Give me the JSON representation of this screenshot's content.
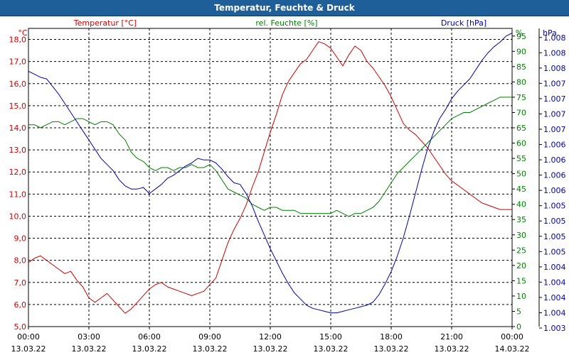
{
  "window": {
    "title": "Temperatur, Feuchte & Druck"
  },
  "chart_data": {
    "type": "line",
    "title": "Temperatur, Feuchte & Druck",
    "grid": true,
    "colors": {
      "temperature": "#cc0000",
      "humidity": "#008000",
      "pressure": "#0000aa",
      "title_bg": "#1f5f99"
    },
    "x_ticks": [
      {
        "time": "00:00",
        "date": "13.03.22"
      },
      {
        "time": "03:00",
        "date": "13.03.22"
      },
      {
        "time": "06:00",
        "date": "13.03.22"
      },
      {
        "time": "09:00",
        "date": "13.03.22"
      },
      {
        "time": "12:00",
        "date": "13.03.22"
      },
      {
        "time": "15:00",
        "date": "13.03.22"
      },
      {
        "time": "18:00",
        "date": "13.03.22"
      },
      {
        "time": "21:00",
        "date": "13.03.22"
      },
      {
        "time": "00:00",
        "date": "14.03.22"
      }
    ],
    "x_range_hours": [
      0,
      24
    ],
    "axes": {
      "temperature": {
        "unit": "°C",
        "label": "Temperatur [°C]",
        "range": [
          5,
          18.5
        ],
        "ticks": [
          "18,0",
          "17,0",
          "16,0",
          "15,0",
          "14,0",
          "13,0",
          "12,0",
          "11,0",
          "10,0",
          "9,0",
          "8,0",
          "7,0",
          "6,0",
          "5,0"
        ]
      },
      "humidity": {
        "unit": "%",
        "label": "rel. Feuchte [%]",
        "range": [
          0,
          97.5
        ],
        "ticks": [
          "95",
          "90",
          "85",
          "80",
          "75",
          "70",
          "65",
          "60",
          "55",
          "50",
          "45",
          "40",
          "35",
          "30",
          "25",
          "20",
          "15",
          "10",
          "5",
          "0"
        ]
      },
      "pressure": {
        "unit": "hPa",
        "label": "Druck [hPa]",
        "ticks": [
          "1.008",
          "1.008",
          "1.008",
          "1.007",
          "1.007",
          "1.007",
          "1.007",
          "1.006",
          "1.006",
          "1.006",
          "1.006",
          "1.005",
          "1.005",
          "1.005",
          "1.005",
          "1.004",
          "1.004",
          "1.004",
          "1.004",
          "1.003"
        ]
      }
    },
    "series": [
      {
        "name": "Temperatur [°C]",
        "axis": "temperature",
        "x": [
          0,
          0.3,
          0.6,
          0.9,
          1.2,
          1.5,
          1.8,
          2.1,
          2.4,
          2.7,
          3.0,
          3.3,
          3.6,
          3.9,
          4.2,
          4.5,
          4.8,
          5.1,
          5.4,
          5.7,
          6.0,
          6.3,
          6.6,
          6.9,
          7.2,
          7.5,
          7.8,
          8.1,
          8.4,
          8.7,
          9.0,
          9.3,
          9.6,
          9.9,
          10.2,
          10.5,
          10.8,
          11.1,
          11.4,
          11.7,
          12.0,
          12.3,
          12.6,
          12.9,
          13.2,
          13.5,
          13.8,
          14.1,
          14.4,
          14.7,
          15.0,
          15.3,
          15.6,
          15.9,
          16.2,
          16.5,
          16.8,
          17.1,
          17.4,
          17.7,
          18.0,
          18.3,
          18.6,
          18.9,
          19.2,
          19.5,
          19.8,
          20.1,
          20.4,
          20.7,
          21.0,
          21.3,
          21.6,
          21.9,
          22.2,
          22.5,
          22.8,
          23.1,
          23.4,
          23.7,
          24.0
        ],
        "values": [
          7.9,
          8.1,
          8.2,
          8.0,
          7.8,
          7.6,
          7.4,
          7.5,
          7.1,
          6.8,
          6.3,
          6.1,
          6.3,
          6.5,
          6.2,
          5.9,
          5.6,
          5.8,
          6.1,
          6.4,
          6.7,
          6.9,
          7.0,
          6.8,
          6.7,
          6.6,
          6.5,
          6.4,
          6.5,
          6.6,
          6.9,
          7.2,
          8.0,
          8.8,
          9.4,
          9.9,
          10.5,
          11.3,
          12.0,
          12.9,
          13.8,
          14.6,
          15.5,
          16.1,
          16.5,
          16.9,
          17.1,
          17.5,
          17.9,
          17.8,
          17.6,
          17.2,
          16.8,
          17.3,
          17.7,
          17.5,
          17.0,
          16.7,
          16.3,
          15.9,
          15.4,
          14.8,
          14.2,
          13.9,
          13.7,
          13.4,
          13.1,
          12.7,
          12.3,
          11.9,
          11.6,
          11.4,
          11.2,
          11.0,
          10.8,
          10.6,
          10.5,
          10.4,
          10.3,
          10.3,
          10.3
        ]
      },
      {
        "name": "rel. Feuchte [%]",
        "axis": "humidity",
        "x": [
          0,
          0.3,
          0.6,
          0.9,
          1.2,
          1.5,
          1.8,
          2.1,
          2.4,
          2.7,
          3.0,
          3.3,
          3.6,
          3.9,
          4.2,
          4.5,
          4.8,
          5.1,
          5.4,
          5.7,
          6.0,
          6.3,
          6.6,
          6.9,
          7.2,
          7.5,
          7.8,
          8.1,
          8.4,
          8.7,
          9.0,
          9.3,
          9.6,
          9.9,
          10.2,
          10.5,
          10.8,
          11.1,
          11.4,
          11.7,
          12.0,
          12.3,
          12.6,
          12.9,
          13.2,
          13.5,
          13.8,
          14.1,
          14.4,
          14.7,
          15.0,
          15.3,
          15.6,
          15.9,
          16.2,
          16.5,
          16.8,
          17.1,
          17.4,
          17.7,
          18.0,
          18.3,
          18.6,
          18.9,
          19.2,
          19.5,
          19.8,
          20.1,
          20.4,
          20.7,
          21.0,
          21.3,
          21.6,
          21.9,
          22.2,
          22.5,
          22.8,
          23.1,
          23.4,
          23.7,
          24.0
        ],
        "values": [
          66,
          66,
          65,
          66,
          67,
          67,
          66,
          67,
          68,
          68,
          67,
          66,
          67,
          67,
          66,
          63,
          61,
          57,
          55,
          54,
          52,
          51,
          52,
          52,
          51,
          52,
          52,
          53,
          52,
          52,
          53,
          51,
          48,
          45,
          44,
          43,
          42,
          40,
          39,
          38,
          39,
          39,
          38,
          38,
          38,
          37,
          37,
          37,
          37,
          37,
          37,
          38,
          37,
          36,
          37,
          37,
          38,
          39,
          41,
          44,
          47,
          50,
          52,
          54,
          56,
          58,
          60,
          62,
          64,
          66,
          68,
          69,
          70,
          70,
          71,
          72,
          73,
          74,
          75,
          75,
          75
        ]
      },
      {
        "name": "Druck [hPa]",
        "axis": "pressure",
        "note": "axis scale values from tick labels; plotted as relative level on the pressure axis (0 = bottom, 19 = top)",
        "x": [
          0,
          0.3,
          0.6,
          0.9,
          1.2,
          1.5,
          1.8,
          2.1,
          2.4,
          2.7,
          3.0,
          3.3,
          3.6,
          3.9,
          4.2,
          4.5,
          4.8,
          5.1,
          5.4,
          5.7,
          6.0,
          6.3,
          6.6,
          6.9,
          7.2,
          7.5,
          7.8,
          8.1,
          8.4,
          8.7,
          9.0,
          9.3,
          9.6,
          9.9,
          10.2,
          10.5,
          10.8,
          11.1,
          11.4,
          11.7,
          12.0,
          12.3,
          12.6,
          12.9,
          13.2,
          13.5,
          13.8,
          14.1,
          14.4,
          14.7,
          15.0,
          15.3,
          15.6,
          15.9,
          16.2,
          16.5,
          16.8,
          17.1,
          17.4,
          17.7,
          18.0,
          18.3,
          18.6,
          18.9,
          19.2,
          19.5,
          19.8,
          20.1,
          20.4,
          20.7,
          21.0,
          21.3,
          21.6,
          21.9,
          22.2,
          22.5,
          22.8,
          23.1,
          23.4,
          23.7,
          24.0
        ],
        "values": [
          16.7,
          16.5,
          16.3,
          16.2,
          15.7,
          15.2,
          14.6,
          14.0,
          13.4,
          12.8,
          12.2,
          11.6,
          11.0,
          10.6,
          10.2,
          9.6,
          9.2,
          9.0,
          9.0,
          9.1,
          8.7,
          9.0,
          9.3,
          9.7,
          9.9,
          10.2,
          10.5,
          10.7,
          11.0,
          10.9,
          10.9,
          10.7,
          10.3,
          9.8,
          9.4,
          9.3,
          8.7,
          7.9,
          6.9,
          6.0,
          5.1,
          4.3,
          3.5,
          2.8,
          2.2,
          1.8,
          1.4,
          1.2,
          1.1,
          1.0,
          0.9,
          0.9,
          1.0,
          1.1,
          1.2,
          1.3,
          1.4,
          1.6,
          2.1,
          2.8,
          3.6,
          4.6,
          5.8,
          7.2,
          8.7,
          10.2,
          11.6,
          12.7,
          13.6,
          14.2,
          14.9,
          15.4,
          15.8,
          16.2,
          16.8,
          17.4,
          17.9,
          18.3,
          18.6,
          19.0,
          19.2
        ]
      }
    ]
  }
}
